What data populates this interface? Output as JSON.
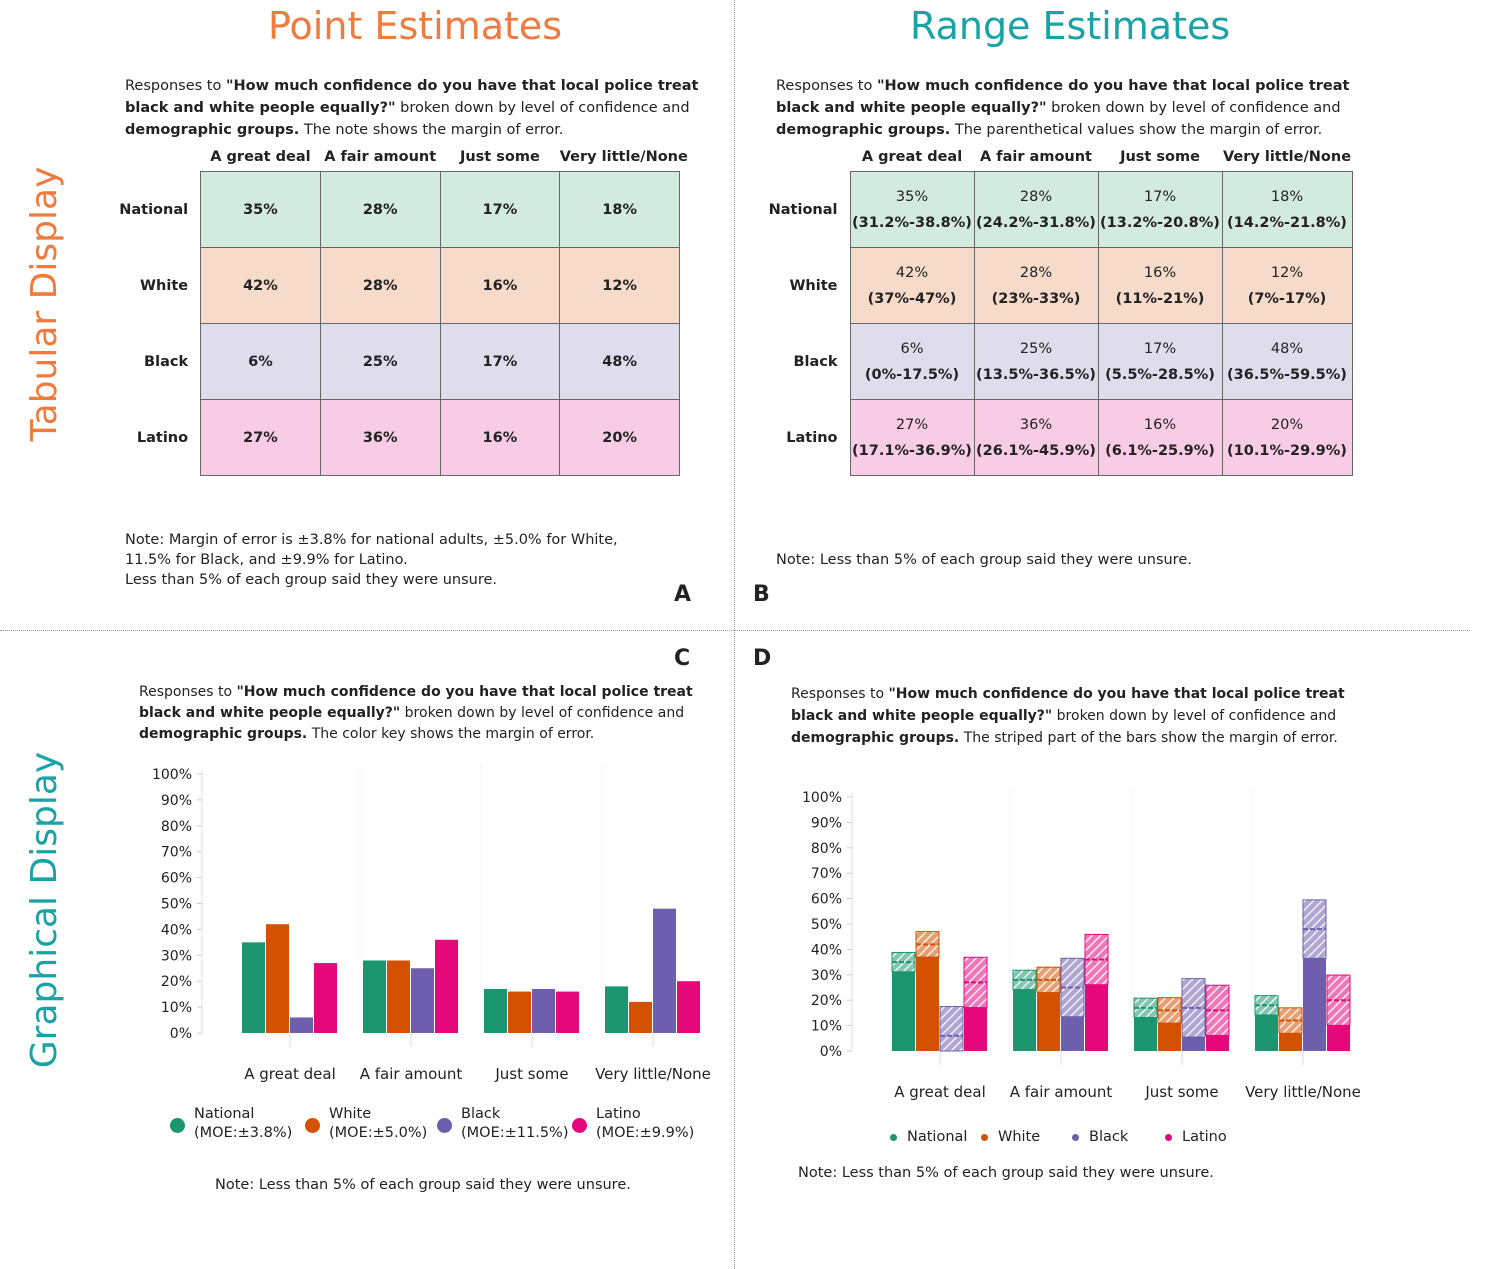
{
  "headings": {
    "point": "Point Estimates",
    "range": "Range Estimates",
    "tabular": "Tabular Display",
    "graphical": "Graphical  Display"
  },
  "colors": {
    "point_heading": "#f07b3f",
    "range_heading": "#1aa3a5",
    "tabular_label": "#f07b3f",
    "graphical_label": "#1aa3a5",
    "national": "#1b9670",
    "white": "#d35100",
    "black": "#6d5fad",
    "latino": "#e4087b",
    "row_national": "#d3eadf",
    "row_white": "#f6dbcb",
    "row_black": "#dfdceb",
    "row_latino": "#f7cce4"
  },
  "caption": {
    "prefix": "Responses to ",
    "question": "\"How much confidence do you have that local police treat black and white people equally?\"",
    "middle": " broken down by level of confidence and ",
    "groups": "demographic groups.",
    "suffix_a": " The note shows the margin of error.",
    "suffix_b": " The parenthetical values show the margin of error.",
    "suffix_c": " The color key shows the margin of error.",
    "suffix_d": " The striped part of the bars show the margin of error."
  },
  "columns": [
    "A great deal",
    "A fair amount",
    "Just some",
    "Very little/None"
  ],
  "rows": [
    "National",
    "White",
    "Black",
    "Latino"
  ],
  "point_values": [
    [
      "35%",
      "28%",
      "17%",
      "18%"
    ],
    [
      "42%",
      "28%",
      "16%",
      "12%"
    ],
    [
      "6%",
      "25%",
      "17%",
      "48%"
    ],
    [
      "27%",
      "36%",
      "16%",
      "20%"
    ]
  ],
  "range_values": [
    [
      "(31.2%-38.8%)",
      "(24.2%-31.8%)",
      "(13.2%-20.8%)",
      "(14.2%-21.8%)"
    ],
    [
      "(37%-47%)",
      "(23%-33%)",
      "(11%-21%)",
      "(7%-17%)"
    ],
    [
      "(0%-17.5%)",
      "(13.5%-36.5%)",
      "(5.5%-28.5%)",
      "(36.5%-59.5%)"
    ],
    [
      "(17.1%-36.9%)",
      "(26.1%-45.9%)",
      "(6.1%-25.9%)",
      "(10.1%-29.9%)"
    ]
  ],
  "notes": {
    "a_line1": "Note: Margin of error is ±3.8% for national adults, ±5.0% for White,",
    "a_line2": "11.5% for Black, and ±9.9% for Latino.",
    "a_line3": "Less than 5% of each group said they were unsure.",
    "b": "Note: Less than 5% of each group said they were unsure.",
    "c": "Note: Less than 5% of each group said they were unsure.",
    "d": "Note: Less than 5% of each group said they were unsure."
  },
  "letters": {
    "a": "A",
    "b": "B",
    "c": "C",
    "d": "D"
  },
  "legend_c": [
    {
      "name": "National",
      "moe": "(MOE:±3.8%)"
    },
    {
      "name": "White",
      "moe": "(MOE:±5.0%)"
    },
    {
      "name": "Black",
      "moe": "(MOE:±11.5%)"
    },
    {
      "name": "Latino",
      "moe": "(MOE:±9.9%)"
    }
  ],
  "legend_d": [
    "National",
    "White",
    "Black",
    "Latino"
  ],
  "chart_data": [
    {
      "type": "bar",
      "panel": "C",
      "categories": [
        "A great deal",
        "A fair amount",
        "Just some",
        "Very little/None"
      ],
      "series": [
        {
          "name": "National",
          "values": [
            35,
            28,
            17,
            18
          ]
        },
        {
          "name": "White",
          "values": [
            42,
            28,
            16,
            12
          ]
        },
        {
          "name": "Black",
          "values": [
            6,
            25,
            17,
            48
          ]
        },
        {
          "name": "Latino",
          "values": [
            27,
            36,
            16,
            20
          ]
        }
      ],
      "yticks": [
        "0%",
        "10%",
        "20%",
        "30%",
        "40%",
        "50%",
        "60%",
        "70%",
        "80%",
        "90%",
        "100%"
      ],
      "ylim": [
        0,
        100
      ],
      "legend": "bottom"
    },
    {
      "type": "bar",
      "panel": "D",
      "categories": [
        "A great deal",
        "A fair amount",
        "Just some",
        "Very little/None"
      ],
      "series": [
        {
          "name": "National",
          "values": [
            35,
            28,
            17,
            18
          ],
          "low": [
            31.2,
            24.2,
            13.2,
            14.2
          ],
          "high": [
            38.8,
            31.8,
            20.8,
            21.8
          ]
        },
        {
          "name": "White",
          "values": [
            42,
            28,
            16,
            12
          ],
          "low": [
            37,
            23,
            11,
            7
          ],
          "high": [
            47,
            33,
            21,
            17
          ]
        },
        {
          "name": "Black",
          "values": [
            6,
            25,
            17,
            48
          ],
          "low": [
            0,
            13.5,
            5.5,
            36.5
          ],
          "high": [
            17.5,
            36.5,
            28.5,
            59.5
          ]
        },
        {
          "name": "Latino",
          "values": [
            27,
            36,
            16,
            20
          ],
          "low": [
            17.1,
            26.1,
            6.1,
            10.1
          ],
          "high": [
            36.9,
            45.9,
            25.9,
            29.9
          ]
        }
      ],
      "yticks": [
        "0%",
        "10%",
        "20%",
        "30%",
        "40%",
        "50%",
        "60%",
        "70%",
        "80%",
        "90%",
        "100%"
      ],
      "ylim": [
        0,
        100
      ],
      "legend": "bottom"
    }
  ]
}
